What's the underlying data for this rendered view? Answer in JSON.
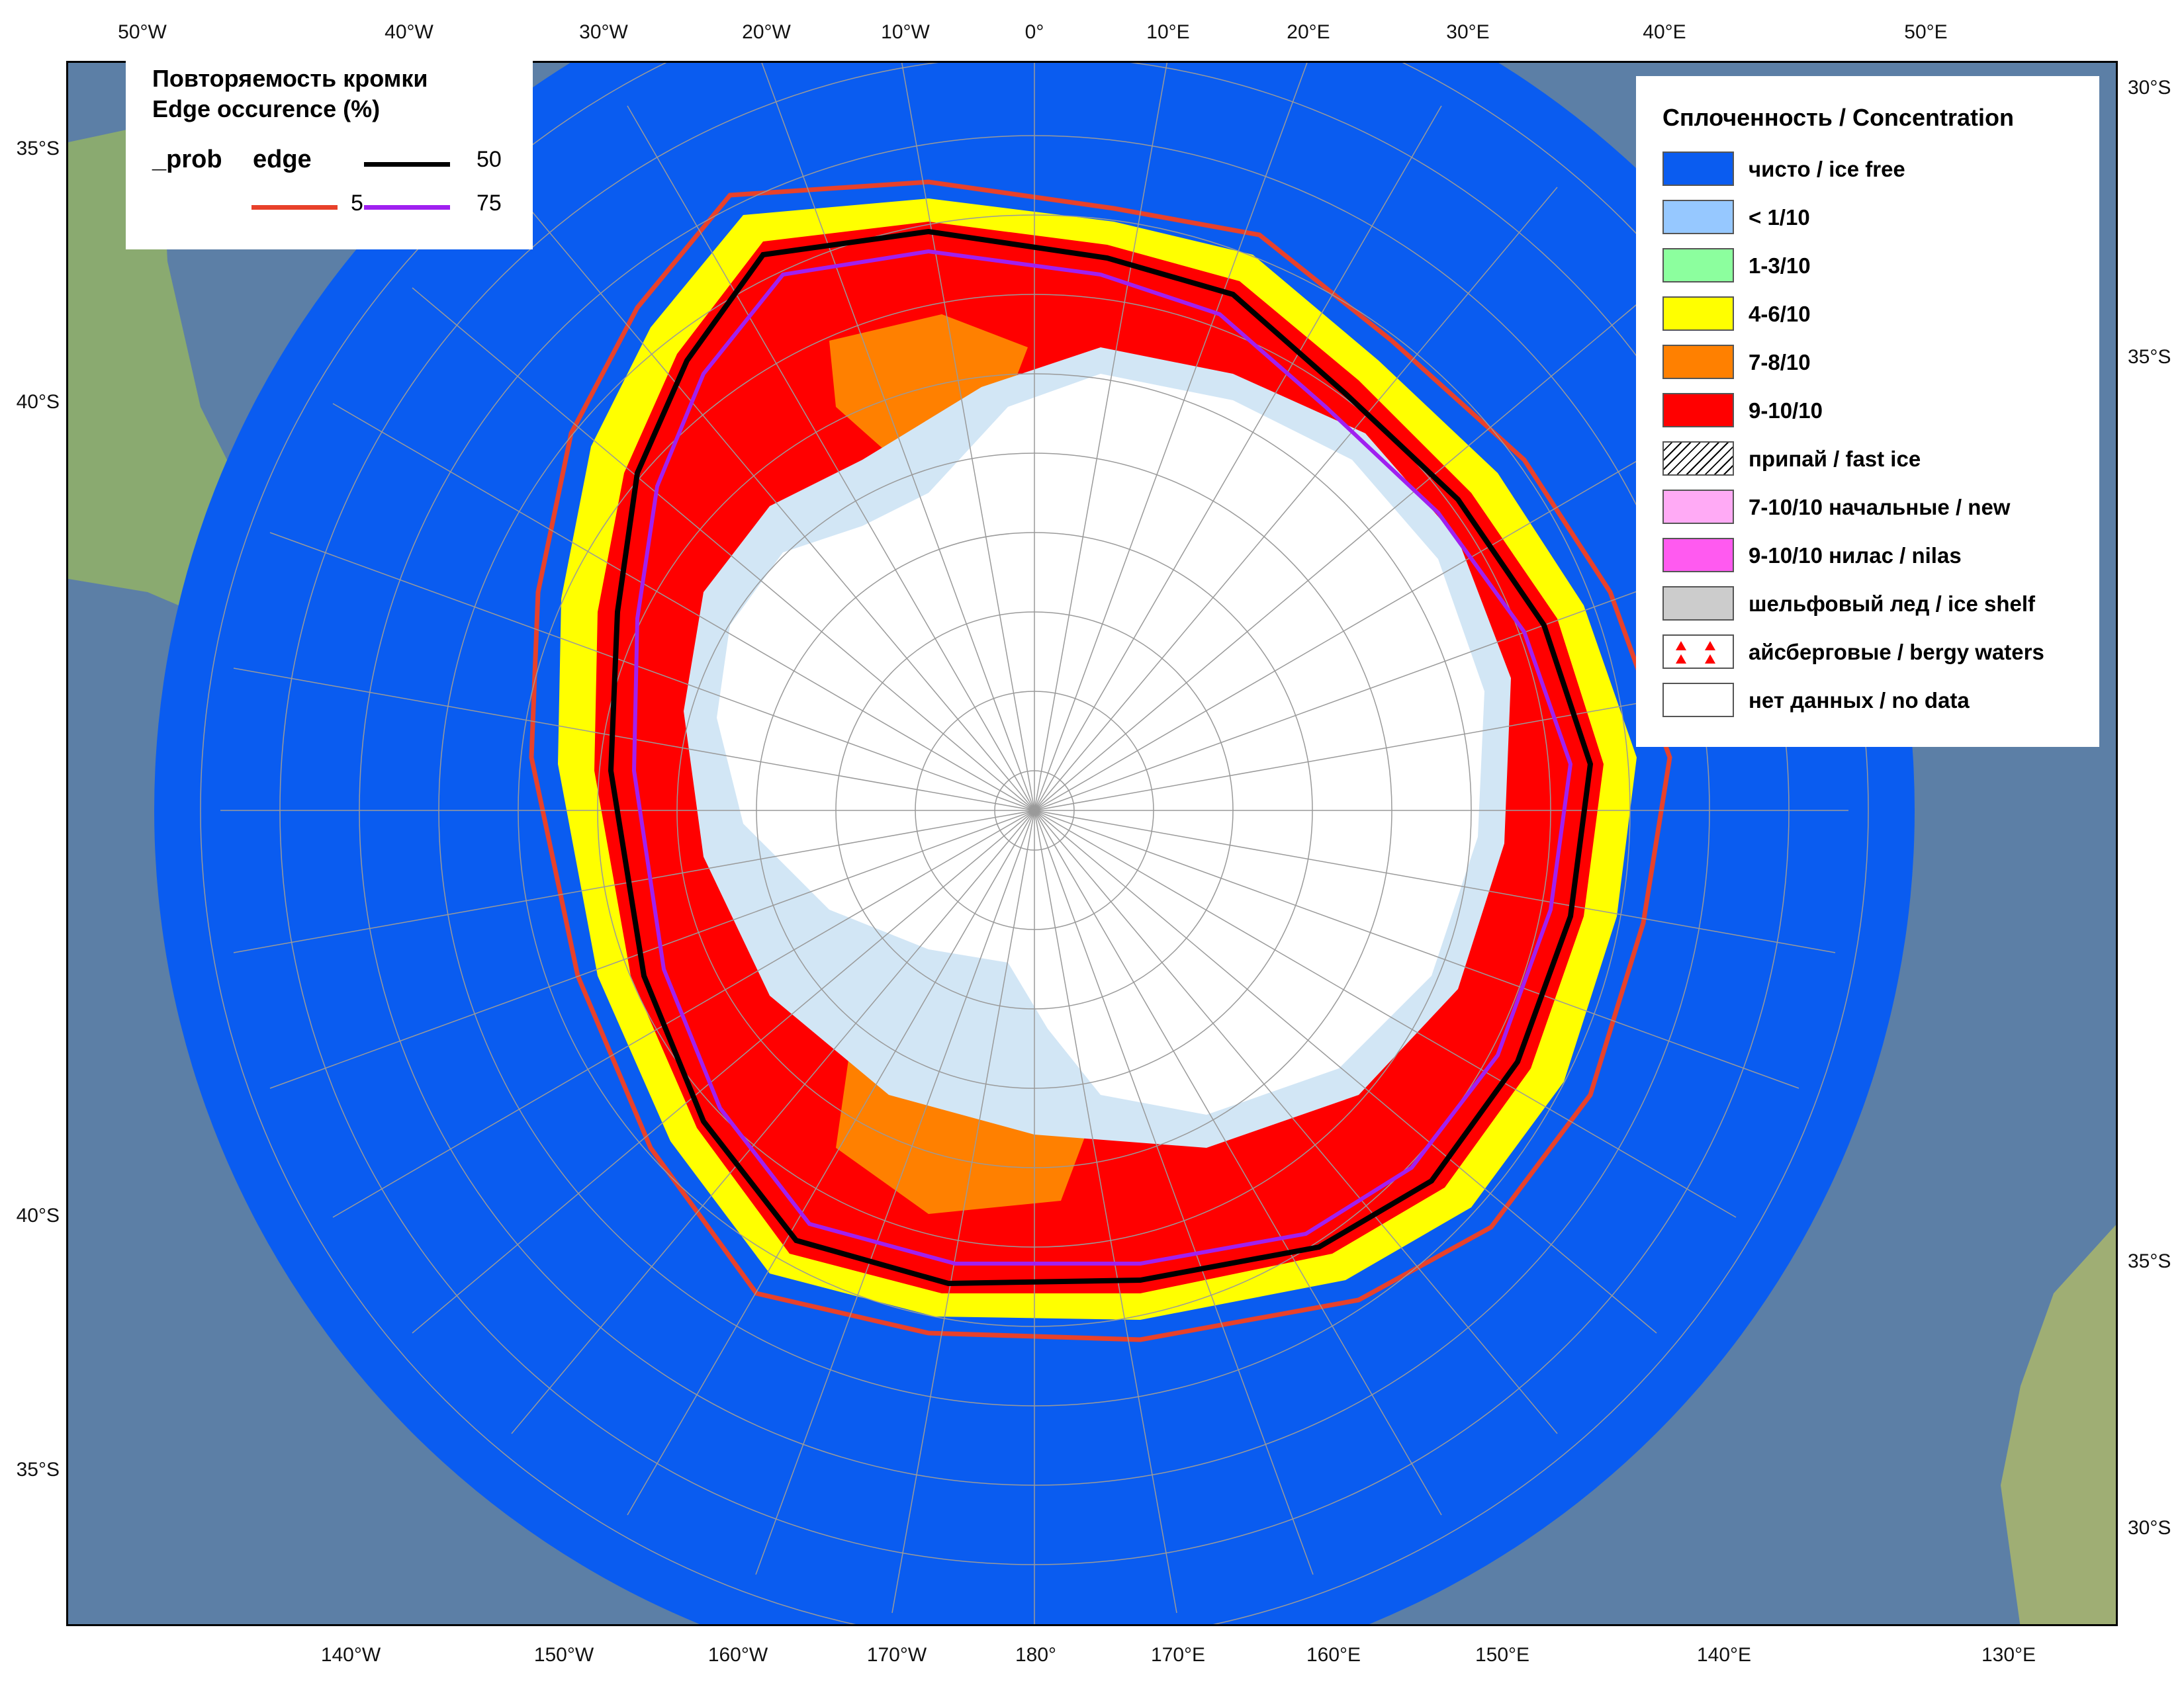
{
  "edge_legend": {
    "title_ru": "Повторяемость кромки",
    "title_en": "Edge occurence (%)",
    "row_label_a": "_prob",
    "row_label_b": "edge",
    "lines": [
      {
        "value": "50",
        "color": "#000000"
      },
      {
        "value": "5",
        "color": "#e8412a"
      },
      {
        "value": "75",
        "color": "#a020f0"
      }
    ]
  },
  "concentration_legend": {
    "title": "Сплоченность / Concentration",
    "items": [
      {
        "label": "чисто / ice free",
        "color": "#0a5cf0",
        "pattern": "solid"
      },
      {
        "label": "< 1/10",
        "color": "#96c8ff",
        "pattern": "solid"
      },
      {
        "label": "1-3/10",
        "color": "#8cff9e",
        "pattern": "solid"
      },
      {
        "label": "4-6/10",
        "color": "#ffff00",
        "pattern": "solid"
      },
      {
        "label": "7-8/10",
        "color": "#ff8000",
        "pattern": "solid"
      },
      {
        "label": "9-10/10",
        "color": "#ff0000",
        "pattern": "solid"
      },
      {
        "label": "припай / fast ice",
        "color": "#ffffff",
        "pattern": "hatch"
      },
      {
        "label": "7-10/10 начальные / new",
        "color": "#ffaaf5",
        "pattern": "solid"
      },
      {
        "label": "9-10/10 нилас / nilas",
        "color": "#ff5af0",
        "pattern": "solid"
      },
      {
        "label": "шельфовый лед / ice shelf",
        "color": "#cccccc",
        "pattern": "solid"
      },
      {
        "label": "айсберговые / bergy waters",
        "color": "#ffffff",
        "pattern": "triangles"
      },
      {
        "label": "нет данных / no data",
        "color": "#ffffff",
        "pattern": "solid"
      }
    ]
  },
  "axis_labels": {
    "top": [
      "50°W",
      "40°W",
      "30°W",
      "20°W",
      "10°W",
      "0°",
      "10°E",
      "20°E",
      "30°E",
      "40°E",
      "50°E"
    ],
    "bottom": [
      "140°W",
      "150°W",
      "160°W",
      "170°W",
      "180°",
      "170°E",
      "160°E",
      "150°E",
      "140°E",
      "130°E"
    ],
    "left": [
      "35°S",
      "40°S",
      "40°S",
      "35°S"
    ],
    "right": [
      "30°S",
      "35°S",
      "35°S",
      "30°S"
    ]
  },
  "colors": {
    "ocean": "#0a5cf0",
    "continent_ice": "#ffffff",
    "ice_shelf": "#d2e6f5",
    "land": "#7fa56b",
    "background_ocean": "#6e8fb0"
  }
}
